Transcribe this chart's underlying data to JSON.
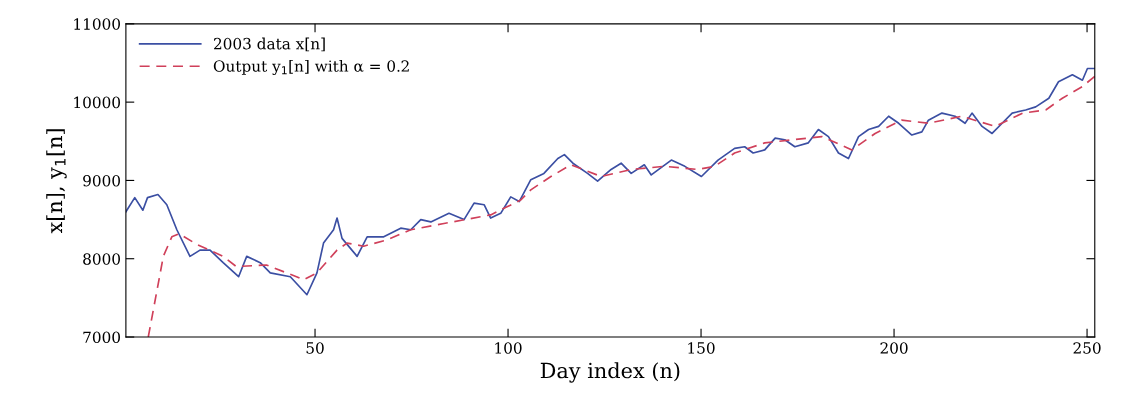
{
  "chart_data": {
    "type": "line",
    "xlabel": "Day index (n)",
    "ylabel": "x[n], y$_{1}$[n]",
    "xlim": [
      1,
      252
    ],
    "ylim": [
      7000,
      11000
    ],
    "xticks": [
      50,
      100,
      150,
      200,
      250
    ],
    "yticks": [
      7000,
      8000,
      9000,
      10000,
      11000
    ],
    "grid": false,
    "legend": "top left",
    "series": [
      {
        "name": "2003 data x[n]",
        "color": "#3b4fa3",
        "line_style": "solid",
        "x": [
          1,
          3.3,
          5.4,
          6.6,
          9.3,
          11.6,
          14.2,
          17.6,
          20.2,
          22.8,
          26.2,
          30.2,
          32.3,
          35.8,
          38.4,
          43.6,
          47.9,
          50.5,
          52.2,
          54.8,
          55.7,
          57,
          60.9,
          63.5,
          67.8,
          72.2,
          74.8,
          77.4,
          80,
          84.7,
          88.6,
          91.2,
          93.8,
          95.5,
          98.1,
          100.7,
          102.9,
          105.9,
          109.3,
          112.9,
          114.6,
          116.8,
          120.6,
          123.2,
          126.7,
          129.3,
          131.9,
          135.3,
          137.1,
          142.3,
          145.8,
          150.1,
          154.4,
          158.7,
          161.3,
          163.5,
          166.5,
          169.2,
          171.7,
          174.3,
          177.8,
          180.4,
          183,
          185.6,
          188.2,
          190.8,
          193.4,
          196,
          198.6,
          201.2,
          204.6,
          207.2,
          208.9,
          212.4,
          215.8,
          218.4,
          220.2,
          222.8,
          225.4,
          228,
          230.6,
          234.1,
          236.7,
          240.1,
          242.6,
          246.2,
          248.8,
          250.1,
          252
        ],
        "values": [
          8600,
          8780,
          8620,
          8780,
          8820,
          8690,
          8370,
          8030,
          8110,
          8110,
          7950,
          7770,
          8030,
          7950,
          7820,
          7770,
          7540,
          7820,
          8200,
          8370,
          8520,
          8260,
          8030,
          8280,
          8280,
          8390,
          8370,
          8500,
          8470,
          8580,
          8500,
          8710,
          8690,
          8520,
          8580,
          8790,
          8730,
          9010,
          9090,
          9280,
          9330,
          9220,
          9090,
          8990,
          9140,
          9220,
          9090,
          9200,
          9070,
          9260,
          9180,
          9050,
          9260,
          9410,
          9430,
          9350,
          9390,
          9540,
          9520,
          9430,
          9480,
          9650,
          9560,
          9350,
          9280,
          9560,
          9650,
          9690,
          9820,
          9730,
          9580,
          9620,
          9770,
          9860,
          9820,
          9730,
          9860,
          9690,
          9600,
          9730,
          9860,
          9900,
          9940,
          10050,
          10260,
          10350,
          10280,
          10430,
          10430
        ]
      },
      {
        "name": "Output y$_{1}$[n] with α = 0.2",
        "color": "#d0405a",
        "line_style": "dashed",
        "x": [
          6.8,
          10.7,
          12.9,
          14.8,
          19.5,
          26.2,
          29.6,
          37.4,
          45.2,
          47,
          50.5,
          55.7,
          58.3,
          62.6,
          68.6,
          74.8,
          83.4,
          95.5,
          103.3,
          105.9,
          111.1,
          116.3,
          124.1,
          131.9,
          140.5,
          149.2,
          153.5,
          158.7,
          166.5,
          181.3,
          189.1,
          195.1,
          202,
          208.9,
          217.5,
          226.2,
          233.3,
          239.3,
          243.6,
          248.8,
          252
        ],
        "values": [
          7000,
          8030,
          8280,
          8320,
          8180,
          8030,
          7900,
          7920,
          7770,
          7730,
          7820,
          8110,
          8200,
          8160,
          8240,
          8370,
          8450,
          8560,
          8750,
          8880,
          9050,
          9200,
          9050,
          9140,
          9180,
          9140,
          9180,
          9350,
          9480,
          9560,
          9390,
          9600,
          9770,
          9730,
          9820,
          9690,
          9860,
          9900,
          10050,
          10200,
          10330
        ]
      }
    ]
  }
}
